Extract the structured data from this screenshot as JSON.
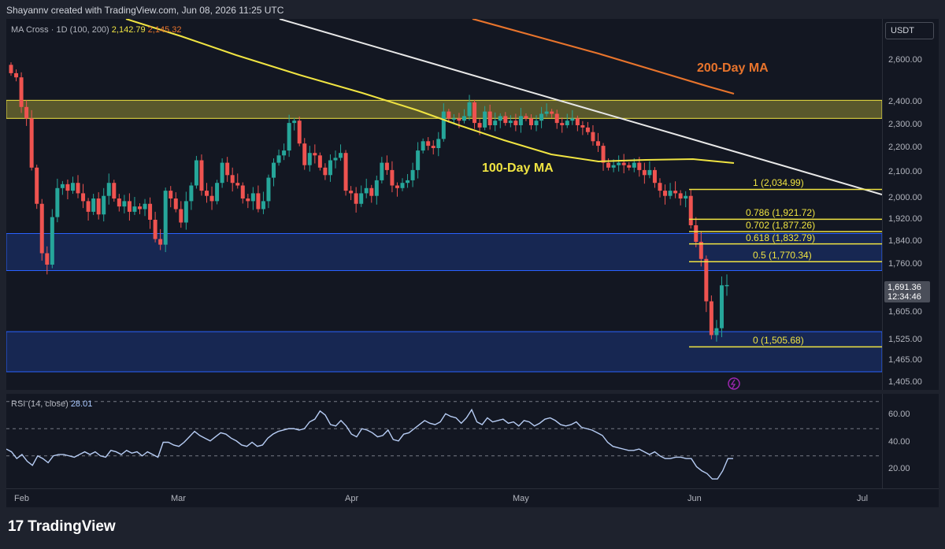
{
  "header": {
    "credit": "Shayannv created with TradingView.com, Jun 08, 2026 11:25 UTC",
    "indicator": "MA Cross · 1D (100, 200)",
    "ma100_value": "2,142.79",
    "ma200_value": "2,145.32"
  },
  "currency": "USDT",
  "price_tag": {
    "price": "1,691.36",
    "countdown": "12:34:46"
  },
  "annotations": {
    "ma200": "200-Day MA",
    "ma100": "100-Day MA"
  },
  "rsi_label": {
    "name": "RSI (14, close)",
    "value": "28.01"
  },
  "footer": {
    "brand": "TradingView"
  },
  "colors": {
    "up": "#26a69a",
    "down": "#ef5350",
    "ma100": "#f0e442",
    "ma200": "#e8742c",
    "trendline": "#e8e8e8",
    "zone_yellow": "#f0e442",
    "zone_blue": "#2962ff",
    "rsi": "#b7cdf5",
    "fib": "#f0e442",
    "lightning": "#9c27b0"
  },
  "chart_data": [
    {
      "type": "candlestick",
      "title": "",
      "ylim": [
        1405,
        2645
      ],
      "price_ticks": [
        "2,600.00",
        "2,400.00",
        "2,300.00",
        "2,200.00",
        "2,100.00",
        "2,000.00",
        "1,920.00",
        "1,840.00",
        "1,760.00",
        "1,680.00",
        "1,605.00",
        "1,525.00",
        "1,465.00",
        "1,405.00"
      ],
      "time_ticks": [
        "Feb",
        "Mar",
        "Apr",
        "May",
        "Jun",
        "Jul"
      ],
      "closes": [
        2540,
        2520,
        2380,
        2330,
        2120,
        1980,
        1800,
        1760,
        1930,
        2040,
        2055,
        2030,
        2060,
        2020,
        1990,
        1950,
        2000,
        1940,
        2010,
        2060,
        2000,
        1970,
        1990,
        1950,
        1970,
        1960,
        1980,
        1920,
        1850,
        1830,
        2030,
        2000,
        1960,
        1910,
        1990,
        2050,
        2150,
        2030,
        2010,
        1990,
        2060,
        2140,
        2090,
        2060,
        2050,
        2000,
        1990,
        2020,
        1960,
        1990,
        2080,
        2140,
        2170,
        2190,
        2310,
        2320,
        2220,
        2130,
        2180,
        2170,
        2120,
        2090,
        2150,
        2160,
        2180,
        2030,
        2020,
        1980,
        2020,
        2040,
        2010,
        2070,
        2140,
        2110,
        2050,
        2040,
        2060,
        2070,
        2110,
        2190,
        2230,
        2210,
        2200,
        2240,
        2360,
        2330,
        2330,
        2320,
        2340,
        2400,
        2310,
        2290,
        2360,
        2300,
        2320,
        2340,
        2310,
        2320,
        2300,
        2340,
        2330,
        2300,
        2320,
        2350,
        2360,
        2350,
        2310,
        2300,
        2320,
        2330,
        2300,
        2290,
        2270,
        2230,
        2210,
        2140,
        2120,
        2130,
        2140,
        2130,
        2120,
        2140,
        2110,
        2090,
        2110,
        2060,
        2030,
        2010,
        2030,
        2020,
        2000,
        2010,
        1900,
        1840,
        1780,
        1640,
        1540,
        1560,
        1690,
        1691
      ],
      "fibonacci": [
        {
          "level": "1",
          "price": 2034.99
        },
        {
          "level": "0.786",
          "price": 1921.72
        },
        {
          "level": "0.702",
          "price": 1877.26
        },
        {
          "level": "0.618",
          "price": 1832.79
        },
        {
          "level": "0.5",
          "price": 1770.34
        },
        {
          "level": "0",
          "price": 1505.68
        }
      ],
      "zones": [
        {
          "name": "resistance",
          "from": 2330,
          "to": 2410
        },
        {
          "name": "support-upper",
          "from": 1740,
          "to": 1870
        },
        {
          "name": "support-lower",
          "from": 1435,
          "to": 1550
        }
      ]
    },
    {
      "type": "line",
      "title": "",
      "ylim": [
        5,
        75
      ],
      "rsi_ticks": [
        "60.00",
        "40.00",
        "20.00"
      ],
      "levels": [
        70,
        50,
        30
      ],
      "values": [
        35,
        33,
        28,
        31,
        26,
        23,
        30,
        28,
        25,
        30,
        31,
        31,
        30,
        29,
        31,
        33,
        31,
        33,
        30,
        29,
        34,
        33,
        31,
        34,
        32,
        33,
        30,
        33,
        31,
        29,
        40,
        40,
        38,
        37,
        40,
        44,
        48,
        45,
        43,
        41,
        44,
        47,
        46,
        43,
        41,
        38,
        37,
        40,
        37,
        38,
        43,
        46,
        48,
        49,
        50,
        50,
        49,
        50,
        55,
        57,
        63,
        60,
        53,
        52,
        56,
        52,
        46,
        44,
        50,
        49,
        47,
        44,
        45,
        49,
        42,
        41,
        46,
        47,
        50,
        53,
        56,
        54,
        53,
        55,
        61,
        59,
        58,
        54,
        58,
        64,
        55,
        53,
        58,
        55,
        56,
        57,
        54,
        55,
        52,
        56,
        55,
        52,
        54,
        57,
        58,
        56,
        53,
        52,
        53,
        55,
        51,
        50,
        49,
        47,
        45,
        40,
        37,
        36,
        35,
        34,
        34,
        35,
        33,
        31,
        33,
        30,
        28,
        28,
        29,
        29,
        28,
        28,
        22,
        19,
        17,
        13,
        13,
        19,
        28,
        28
      ]
    }
  ]
}
